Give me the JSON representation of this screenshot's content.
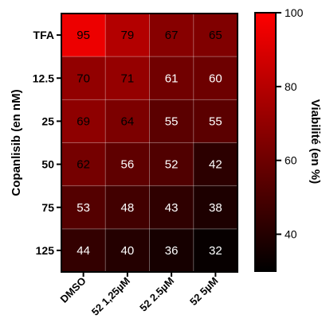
{
  "chart_data": {
    "type": "heatmap",
    "ylabel": "Copanlisib (en nM)",
    "xlabel": "",
    "colorbar_label": "Viabilité (en %)",
    "rows": [
      "TFA",
      "12.5",
      "25",
      "50",
      "75",
      "125"
    ],
    "columns": [
      "DMSO",
      "52 1,25µM",
      "52 2.5µM",
      "52 5µM"
    ],
    "values": [
      [
        95,
        79,
        67,
        65
      ],
      [
        70,
        71,
        61,
        60
      ],
      [
        69,
        64,
        55,
        55
      ],
      [
        62,
        56,
        52,
        42
      ],
      [
        53,
        48,
        43,
        38
      ],
      [
        44,
        40,
        36,
        32
      ]
    ],
    "color_range": [
      30,
      100
    ],
    "colorbar_ticks": [
      40,
      60,
      80,
      100
    ],
    "colors": {
      "low": "#000000",
      "high": "#ff0000"
    },
    "grid": true
  }
}
